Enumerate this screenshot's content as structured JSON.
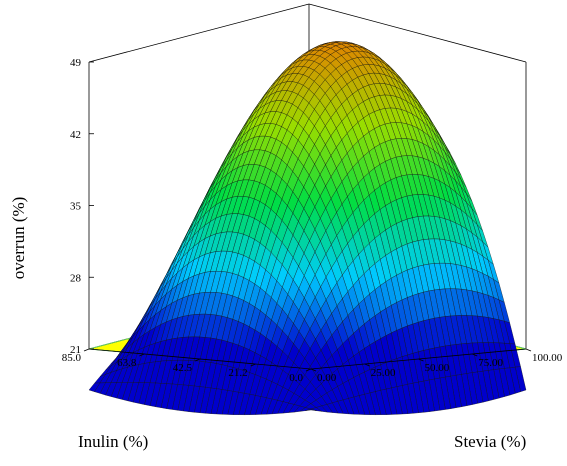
{
  "chart_data": {
    "type": "surface3d",
    "title": "",
    "zlabel": "overrun (%)",
    "xlabel": "Stevia (%)",
    "ylabel": "Inulin (%)",
    "x_ticks": [
      "0.00",
      "25.00",
      "50.00",
      "75.00",
      "100.00"
    ],
    "y_ticks": [
      "0.0",
      "21.2",
      "42.5",
      "63.8",
      "85.0"
    ],
    "z_ticks": [
      "21",
      "28",
      "35",
      "42",
      "49"
    ],
    "xlim": [
      0,
      100
    ],
    "ylim": [
      0,
      85
    ],
    "zlim": [
      21,
      49
    ],
    "surface": {
      "corners": {
        "stevia0_inulin0": 17,
        "stevia0_inulin85": 22.5,
        "stevia100_inulin85": 33.5,
        "stevia100_inulin0": 23
      },
      "max_value": 49,
      "max_location": {
        "stevia": 65,
        "inulin": 45
      }
    },
    "floor_color": "#ffff00",
    "contour_color": "#66cc66",
    "colormap": [
      "#0000cc",
      "#00ccff",
      "#00dd44",
      "#99dd00",
      "#dd8800"
    ]
  }
}
